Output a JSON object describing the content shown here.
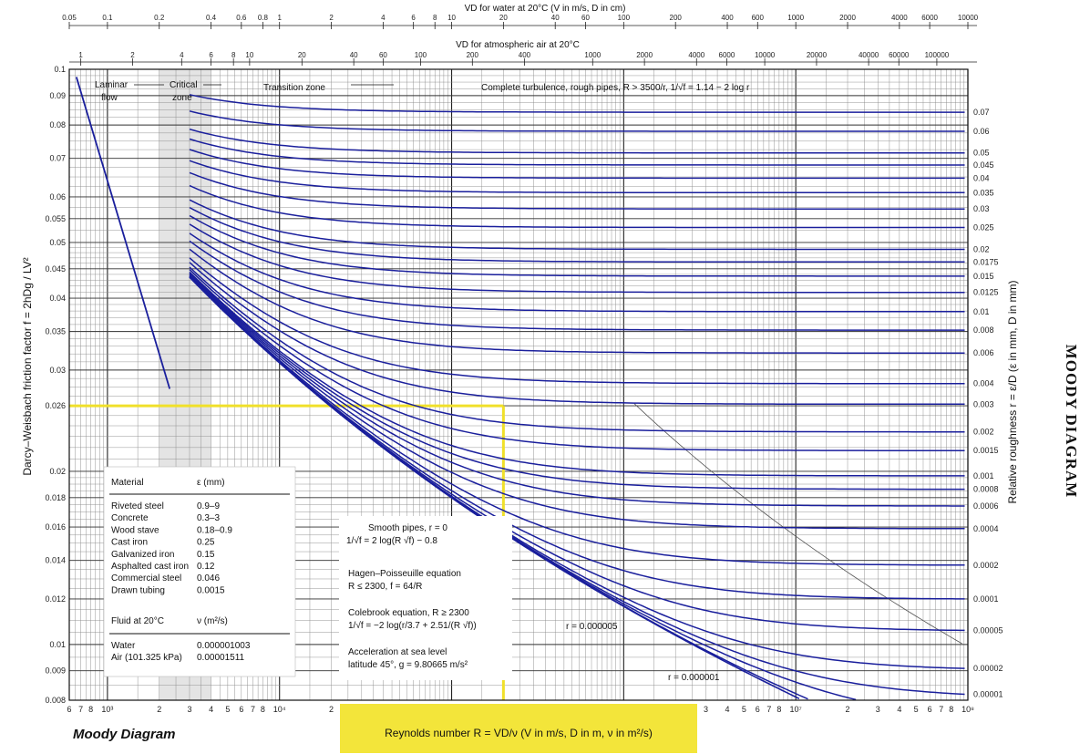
{
  "chart_data": {
    "type": "line",
    "title": "MOODY DIAGRAM",
    "corner_title": "Moody Diagram",
    "ylabel": "Darcy–Weisbach friction factor f = 2hDg / LV²",
    "xlabel": "Reynolds number R = VD/ν (V in m/s, D in m, ν in m²/s)",
    "right_label": "Relative roughness r = ε/D (ε in mm, D in mm)",
    "top_axis_1_label": "VD for water at 20°C (V in m/s, D in cm)",
    "top_axis_2_label": "VD for atmospheric air at 20°C",
    "x_scale": "log",
    "y_scale": "log",
    "xlim": [
      600,
      100000000
    ],
    "ylim": [
      0.008,
      0.1
    ],
    "grid": true,
    "y_ticks": [
      {
        "v": 0.1,
        "label": "0.1"
      },
      {
        "v": 0.09,
        "label": "0.09"
      },
      {
        "v": 0.08,
        "label": "0.08"
      },
      {
        "v": 0.07,
        "label": "0.07"
      },
      {
        "v": 0.06,
        "label": "0.06"
      },
      {
        "v": 0.055,
        "label": "0.055"
      },
      {
        "v": 0.05,
        "label": "0.05"
      },
      {
        "v": 0.045,
        "label": "0.045"
      },
      {
        "v": 0.04,
        "label": "0.04"
      },
      {
        "v": 0.035,
        "label": "0.035"
      },
      {
        "v": 0.03,
        "label": "0.03"
      },
      {
        "v": 0.026,
        "label": "0.026"
      },
      {
        "v": 0.02,
        "label": "0.02"
      },
      {
        "v": 0.018,
        "label": "0.018"
      },
      {
        "v": 0.016,
        "label": "0.016"
      },
      {
        "v": 0.014,
        "label": "0.014"
      },
      {
        "v": 0.012,
        "label": "0.012"
      },
      {
        "v": 0.01,
        "label": "0.01"
      },
      {
        "v": 0.009,
        "label": "0.009"
      },
      {
        "v": 0.008,
        "label": "0.008"
      }
    ],
    "x_ticks": [
      {
        "v": 600,
        "label": "6"
      },
      {
        "v": 700,
        "label": "7"
      },
      {
        "v": 800,
        "label": "8"
      },
      {
        "v": 1000,
        "label": "10³"
      },
      {
        "v": 2000,
        "label": "2"
      },
      {
        "v": 3000,
        "label": "3"
      },
      {
        "v": 4000,
        "label": "4"
      },
      {
        "v": 5000,
        "label": "5"
      },
      {
        "v": 6000,
        "label": "6"
      },
      {
        "v": 7000,
        "label": "7"
      },
      {
        "v": 8000,
        "label": "8"
      },
      {
        "v": 10000,
        "label": "10⁴"
      },
      {
        "v": 20000,
        "label": "2"
      },
      {
        "v": 30000,
        "label": "3"
      },
      {
        "v": 40000,
        "label": "4"
      },
      {
        "v": 50000,
        "label": "5"
      },
      {
        "v": 60000,
        "label": "6"
      },
      {
        "v": 70000,
        "label": "7"
      },
      {
        "v": 80000,
        "label": "8"
      },
      {
        "v": 100000,
        "label": "10⁵"
      },
      {
        "v": 200000,
        "label": "2"
      },
      {
        "v": 300000,
        "label": "3"
      },
      {
        "v": 400000,
        "label": "4"
      },
      {
        "v": 500000,
        "label": "5"
      },
      {
        "v": 600000,
        "label": "6"
      },
      {
        "v": 700000,
        "label": "7"
      },
      {
        "v": 800000,
        "label": "8"
      },
      {
        "v": 1000000,
        "label": "10⁶"
      },
      {
        "v": 2000000,
        "label": "2"
      },
      {
        "v": 3000000,
        "label": "3"
      },
      {
        "v": 4000000,
        "label": "4"
      },
      {
        "v": 5000000,
        "label": "5"
      },
      {
        "v": 6000000,
        "label": "6"
      },
      {
        "v": 7000000,
        "label": "7"
      },
      {
        "v": 8000000,
        "label": "8"
      },
      {
        "v": 10000000,
        "label": "10⁷"
      },
      {
        "v": 20000000,
        "label": "2"
      },
      {
        "v": 30000000,
        "label": "3"
      },
      {
        "v": 40000000,
        "label": "4"
      },
      {
        "v": 50000000,
        "label": "5"
      },
      {
        "v": 60000000,
        "label": "6"
      },
      {
        "v": 70000000,
        "label": "7"
      },
      {
        "v": 80000000,
        "label": "8"
      },
      {
        "v": 100000000,
        "label": "10⁸"
      }
    ],
    "top_ticks_water": [
      {
        "re": 600,
        "label": "0.05"
      },
      {
        "re": 1000,
        "label": "0.1"
      },
      {
        "re": 2000,
        "label": "0.2"
      },
      {
        "re": 4000,
        "label": "0.4"
      },
      {
        "re": 6000,
        "label": "0.6"
      },
      {
        "re": 8000,
        "label": "0.8"
      },
      {
        "re": 10000,
        "label": "1"
      },
      {
        "re": 20000,
        "label": "2"
      },
      {
        "re": 40000,
        "label": "4"
      },
      {
        "re": 60000,
        "label": "6"
      },
      {
        "re": 80000,
        "label": "8"
      },
      {
        "re": 100000,
        "label": "10"
      },
      {
        "re": 200000,
        "label": "20"
      },
      {
        "re": 400000,
        "label": "40"
      },
      {
        "re": 600000,
        "label": "60"
      },
      {
        "re": 1000000,
        "label": "100"
      },
      {
        "re": 2000000,
        "label": "200"
      },
      {
        "re": 4000000,
        "label": "400"
      },
      {
        "re": 6000000,
        "label": "600"
      },
      {
        "re": 10000000,
        "label": "1000"
      },
      {
        "re": 20000000,
        "label": "2000"
      },
      {
        "re": 40000000,
        "label": "4000"
      },
      {
        "re": 60000000,
        "label": "6000"
      },
      {
        "re": 100000000,
        "label": "10000"
      }
    ],
    "top_ticks_air": [
      {
        "re": 700,
        "label": "1"
      },
      {
        "re": 1400,
        "label": "2"
      },
      {
        "re": 2700,
        "label": "4"
      },
      {
        "re": 4000,
        "label": "6"
      },
      {
        "re": 5400,
        "label": "8"
      },
      {
        "re": 6700,
        "label": "10"
      },
      {
        "re": 13500,
        "label": "20"
      },
      {
        "re": 27000,
        "label": "40"
      },
      {
        "re": 40000,
        "label": "60"
      },
      {
        "re": 66000,
        "label": "100"
      },
      {
        "re": 132000,
        "label": "200"
      },
      {
        "re": 265000,
        "label": "400"
      },
      {
        "re": 660000,
        "label": "1000"
      },
      {
        "re": 1320000,
        "label": "2000"
      },
      {
        "re": 2650000,
        "label": "4000"
      },
      {
        "re": 3970000,
        "label": "6000"
      },
      {
        "re": 6600000,
        "label": "10000"
      },
      {
        "re": 13200000,
        "label": "20000"
      },
      {
        "re": 26500000,
        "label": "40000"
      },
      {
        "re": 39700000,
        "label": "60000"
      },
      {
        "re": 66000000,
        "label": "100000"
      }
    ],
    "roughness_values": [
      0.07,
      0.06,
      0.05,
      0.045,
      0.04,
      0.035,
      0.03,
      0.025,
      0.02,
      0.0175,
      0.015,
      0.0125,
      0.01,
      0.008,
      0.006,
      0.004,
      0.003,
      0.002,
      0.0015,
      0.001,
      0.0008,
      0.0006,
      0.0004,
      0.0002,
      0.0001,
      5e-05,
      2e-05,
      1e-05
    ],
    "roughness_labels": [
      "0.07",
      "0.06",
      "0.05",
      "0.045",
      "0.04",
      "0.035",
      "0.03",
      "0.025",
      "0.02",
      "0.0175",
      "0.015",
      "0.0125",
      "0.01",
      "0.008",
      "0.006",
      "0.004",
      "0.003",
      "0.002",
      "0.0015",
      "0.001",
      "0.0008",
      "0.0006",
      "0.0004",
      "0.0002",
      "0.0001",
      "0.00005",
      "0.00002",
      "0.00001"
    ],
    "extra_curve_labels": [
      "r = 0.000005",
      "r = 0.000001"
    ],
    "extra_curve_values": [
      5e-06,
      1e-06
    ],
    "laminar": {
      "equation": "f = 64/R",
      "x_range": [
        600,
        2300
      ]
    },
    "zones": {
      "laminar": "Laminar flow",
      "critical": "Critical zone",
      "transition": "Transition zone",
      "turbulent": "Complete turbulence, rough pipes, R > 3500/r, 1/√f = 1.14 − 2 log r"
    },
    "highlight_example": {
      "re": 200000,
      "f": 0.026
    },
    "colors": {
      "curve": "#1a1f9c",
      "laminar": "#1a1f9c",
      "highlight": "#f0e02a",
      "grid": "#444444",
      "reynolds_box": "#f3e53a"
    }
  },
  "material_table": {
    "headers": [
      "Material",
      "ε (mm)"
    ],
    "rows": [
      [
        "Riveted steel",
        "0.9–9"
      ],
      [
        "Concrete",
        "0.3–3"
      ],
      [
        "Wood stave",
        "0.18–0.9"
      ],
      [
        "Cast iron",
        "0.25"
      ],
      [
        "Galvanized iron",
        "0.15"
      ],
      [
        "Asphalted cast iron",
        "0.12"
      ],
      [
        "Commercial steel",
        "0.046"
      ],
      [
        "Drawn tubing",
        "0.0015"
      ]
    ],
    "fluid_headers": [
      "Fluid at 20°C",
      "ν (m²/s)"
    ],
    "fluid_rows": [
      [
        "Water",
        "0.000001003"
      ],
      [
        "Air (101.325 kPa)",
        "0.00001511"
      ]
    ]
  },
  "equations": {
    "smooth_title": "Smooth pipes, r = 0",
    "smooth_eq": "1/√f = 2 log(R √f) − 0.8",
    "hp_title": "Hagen–Poisseuille equation",
    "hp_eq": "R ≤ 2300, f = 64/R",
    "cb_title": "Colebrook equation, R ≥ 2300",
    "cb_eq": "1/√f = −2 log(r/3.7 + 2.51/(R √f))",
    "acc_title": "Acceleration at sea level",
    "acc_eq": "latitude 45°, g = 9.80665 m/s²"
  }
}
